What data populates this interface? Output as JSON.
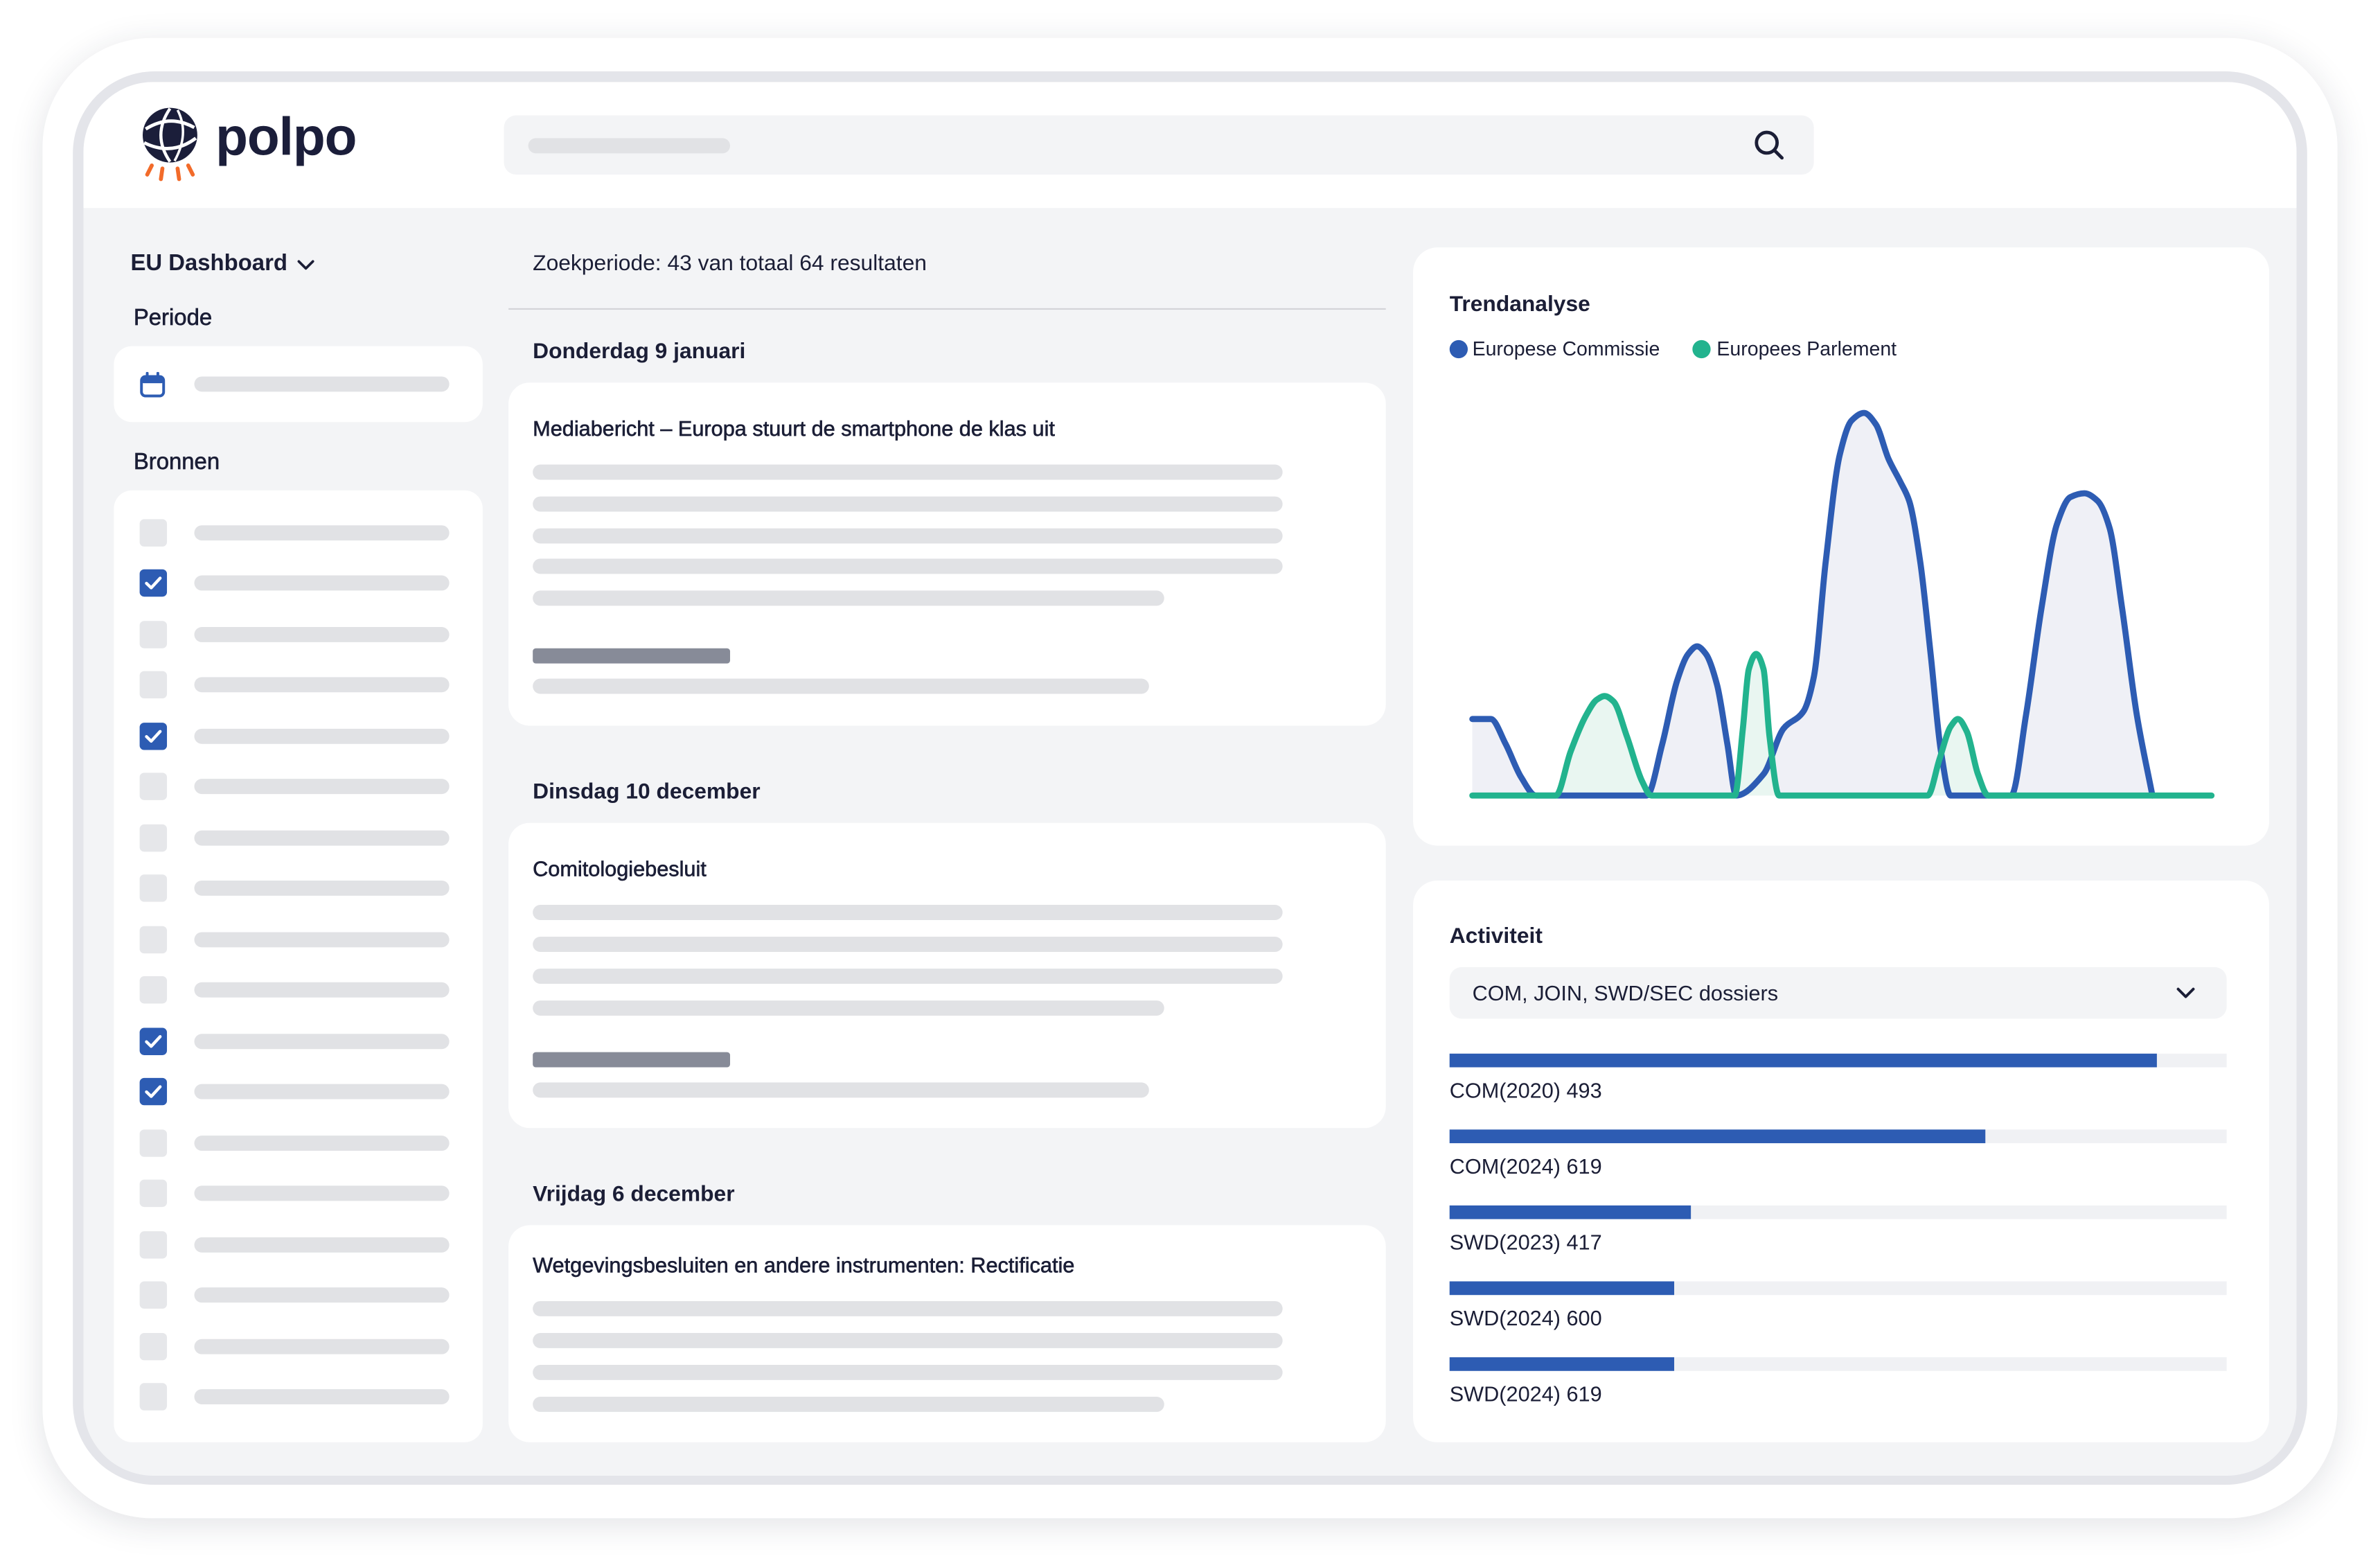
{
  "app": {
    "logo_text": "polpo",
    "logo_icon": "polpo-globe-logo"
  },
  "search": {
    "icon": "search-icon"
  },
  "sidebar": {
    "dashboard_label": "EU Dashboard",
    "dashboard_icon": "chevron-down-icon",
    "period_label": "Periode",
    "period_icon": "calendar-icon",
    "sources_label": "Bronnen",
    "sources": [
      {
        "checked": false
      },
      {
        "checked": true
      },
      {
        "checked": false
      },
      {
        "checked": false
      },
      {
        "checked": true
      },
      {
        "checked": false
      },
      {
        "checked": false
      },
      {
        "checked": false
      },
      {
        "checked": false
      },
      {
        "checked": false
      },
      {
        "checked": true
      },
      {
        "checked": true
      },
      {
        "checked": false
      },
      {
        "checked": false
      },
      {
        "checked": false
      },
      {
        "checked": false
      },
      {
        "checked": false
      },
      {
        "checked": false
      }
    ]
  },
  "results": {
    "summary": "Zoekperiode: 43 van totaal 64 resultaten",
    "groups": [
      {
        "date": "Donderdag 9 januari",
        "items": [
          {
            "title": "Mediabericht – Europa stuurt de smartphone de klas uit"
          }
        ]
      },
      {
        "date": "Dinsdag 10 december",
        "items": [
          {
            "title": "Comitologiebesluit"
          }
        ]
      },
      {
        "date": "Vrijdag 6 december",
        "items": [
          {
            "title": "Wetgevingsbesluiten en andere instrumenten: Rectificatie"
          }
        ]
      }
    ]
  },
  "chart_data": {
    "type": "area",
    "title": "Trendanalyse",
    "xlim": [
      0,
      100
    ],
    "ylim": [
      0,
      100
    ],
    "grid": false,
    "legend": "top-left",
    "series": [
      {
        "name": "Europese Commissie",
        "color": "#2d5cb3",
        "fill": "#eff0f6",
        "points": [
          [
            0,
            20
          ],
          [
            2.5,
            20
          ],
          [
            4.5,
            13.5
          ],
          [
            6.6,
            4.8
          ],
          [
            8.6,
            0
          ],
          [
            23.6,
            0
          ],
          [
            25.7,
            13.5
          ],
          [
            27.7,
            30
          ],
          [
            29.2,
            37
          ],
          [
            30.4,
            39
          ],
          [
            31.6,
            37
          ],
          [
            33.1,
            29
          ],
          [
            34.5,
            13.5
          ],
          [
            35.7,
            0
          ],
          [
            39.4,
            5.6
          ],
          [
            42.1,
            17.5
          ],
          [
            44.8,
            22
          ],
          [
            46.2,
            31
          ],
          [
            47.8,
            61
          ],
          [
            49.7,
            89
          ],
          [
            51.3,
            98
          ],
          [
            53.0,
            100
          ],
          [
            54.6,
            97
          ],
          [
            56.3,
            88
          ],
          [
            57.9,
            82
          ],
          [
            59.1,
            77
          ],
          [
            60.6,
            61
          ],
          [
            62.0,
            37
          ],
          [
            63.4,
            11.5
          ],
          [
            64.7,
            0
          ],
          [
            72.9,
            0
          ],
          [
            74.9,
            21
          ],
          [
            77.0,
            49
          ],
          [
            79.1,
            71
          ],
          [
            80.9,
            78
          ],
          [
            82.8,
            79
          ],
          [
            84.6,
            77
          ],
          [
            86.2,
            70
          ],
          [
            87.9,
            49
          ],
          [
            89.9,
            21
          ],
          [
            92.0,
            0
          ]
        ]
      },
      {
        "name": "Europees Parlement",
        "color": "#22b38e",
        "fill": "#e9f6f1",
        "points": [
          [
            0,
            0
          ],
          [
            11.3,
            0
          ],
          [
            13.3,
            11.5
          ],
          [
            15.4,
            21
          ],
          [
            16.8,
            25
          ],
          [
            17.9,
            26
          ],
          [
            19.1,
            24.6
          ],
          [
            20.9,
            15.5
          ],
          [
            23.0,
            3.6
          ],
          [
            24.2,
            0
          ],
          [
            35.5,
            0
          ],
          [
            36.6,
            17.5
          ],
          [
            37.4,
            33
          ],
          [
            38.4,
            37
          ],
          [
            39.4,
            33
          ],
          [
            40.2,
            15.5
          ],
          [
            41.5,
            0
          ],
          [
            61.6,
            0
          ],
          [
            63.2,
            9.5
          ],
          [
            64.7,
            18
          ],
          [
            65.7,
            20
          ],
          [
            66.9,
            16.7
          ],
          [
            68.4,
            5.6
          ],
          [
            69.8,
            0
          ],
          [
            100,
            0
          ]
        ]
      }
    ]
  },
  "activity": {
    "title": "Activiteit",
    "filter_value": "COM, JOIN, SWD/SEC dossiers",
    "filter_icon": "chevron-down-icon",
    "bars": [
      {
        "label": "COM(2020) 493",
        "fill": 0.91
      },
      {
        "label": "COM(2024) 619",
        "fill": 0.69
      },
      {
        "label": "SWD(2023) 417",
        "fill": 0.31
      },
      {
        "label": "SWD(2024) 600",
        "fill": 0.29
      },
      {
        "label": "SWD(2024) 619",
        "fill": 0.29
      }
    ]
  },
  "colors": {
    "text": "#1b1e36",
    "primary": "#2d5cb3",
    "teal": "#22b38e",
    "logo_orange": "#f26b2a",
    "background": "#f3f4f6"
  }
}
